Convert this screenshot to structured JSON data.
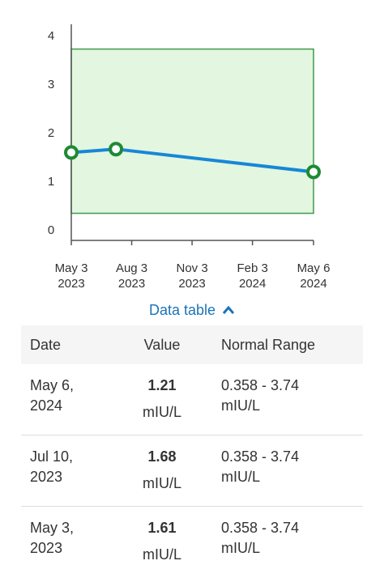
{
  "chart_data": {
    "type": "line",
    "x": [
      "2023-05-03",
      "2023-07-10",
      "2024-05-06"
    ],
    "series": [
      {
        "color": "#1787d6",
        "marker_color": "#1e8a34",
        "values": [
          1.61,
          1.68,
          1.21
        ]
      }
    ],
    "xlim": [
      "2023-05-03",
      "2024-05-06"
    ],
    "xticks": [
      {
        "value": "2023-05-03",
        "label": [
          "May 3",
          "2023"
        ]
      },
      {
        "value": "2023-08-03",
        "label": [
          "Aug 3",
          "2023"
        ]
      },
      {
        "value": "2023-11-03",
        "label": [
          "Nov 3",
          "2023"
        ]
      },
      {
        "value": "2024-02-03",
        "label": [
          "Feb 3",
          "2024"
        ]
      },
      {
        "value": "2024-05-06",
        "label": [
          "May 6",
          "2024"
        ]
      }
    ],
    "ylim": [
      -0.2,
      4.25
    ],
    "yticks": [
      0,
      1,
      2,
      3,
      4
    ],
    "normal_range": [
      0.358,
      3.74
    ],
    "normal_range_color": "#e2f6e0",
    "normal_range_border": "#3f9a4c"
  },
  "data_table": {
    "toggle": "Data table",
    "headers": [
      "Date",
      "Value",
      "Normal Range"
    ],
    "rows": [
      {
        "date": "May 6, 2024",
        "value": "1.21",
        "unit": "mIU/L",
        "range": "0.358 - 3.74",
        "range_unit": "mIU/L"
      },
      {
        "date": "Jul 10, 2023",
        "value": "1.68",
        "unit": "mIU/L",
        "range": "0.358 - 3.74",
        "range_unit": "mIU/L"
      },
      {
        "date": "May 3, 2023",
        "value": "1.61",
        "unit": "mIU/L",
        "range": "0.358 - 3.74",
        "range_unit": "mIU/L"
      }
    ]
  }
}
